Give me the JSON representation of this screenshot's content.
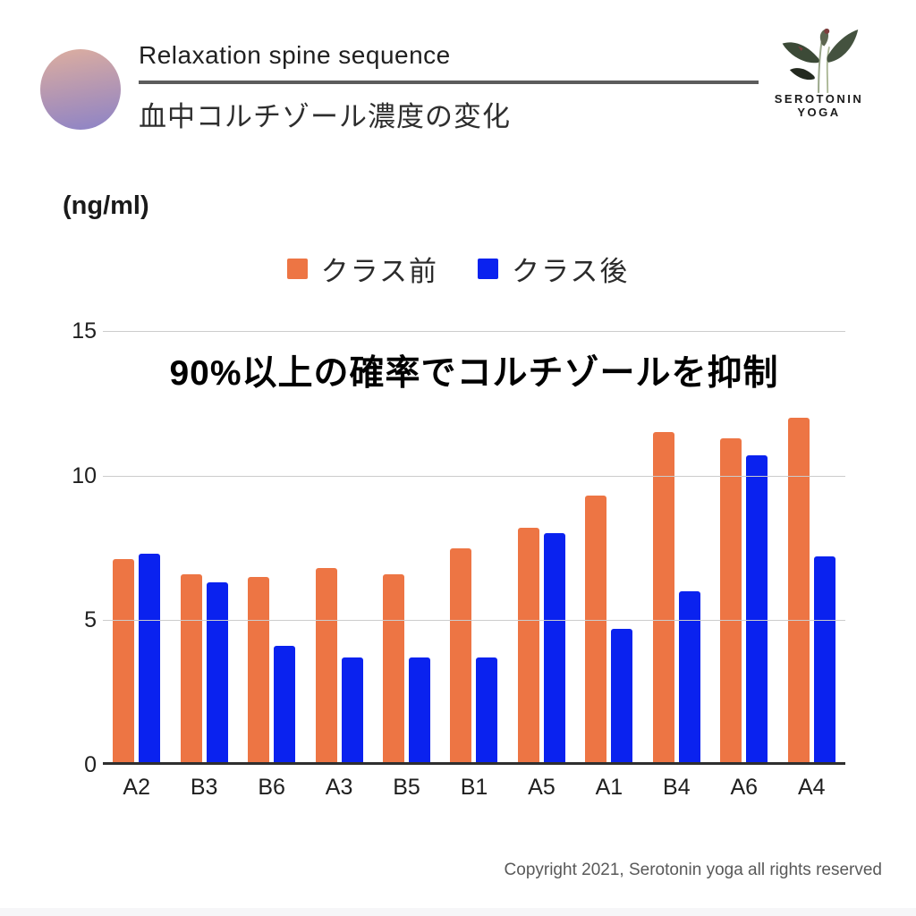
{
  "header": {
    "title": "Relaxation spine sequence",
    "subtitle": "血中コルチゾール濃度の変化",
    "brand_line1": "SEROTONIN",
    "brand_line2": "YOGA"
  },
  "unit_label": "(ng/ml)",
  "annotation": "90%以上の確率でコルチゾールを抑制",
  "footer": {
    "copyright": "Copyright 2021, Serotonin yoga all rights reserved"
  },
  "colors": {
    "before": "#ED7544",
    "after": "#0A22EF",
    "grid": "#CCCCCC",
    "axis": "#2F2F2F"
  },
  "chart_data": {
    "type": "bar",
    "categories": [
      "A2",
      "B3",
      "B6",
      "A3",
      "B5",
      "B1",
      "A5",
      "A1",
      "B4",
      "A6",
      "A4"
    ],
    "series": [
      {
        "name": "クラス前",
        "color": "#ED7544",
        "values": [
          7.1,
          6.6,
          6.5,
          6.8,
          6.6,
          7.5,
          8.2,
          9.3,
          11.5,
          11.3,
          12.0
        ]
      },
      {
        "name": "クラス後",
        "color": "#0A22EF",
        "values": [
          7.3,
          6.3,
          4.1,
          3.7,
          3.7,
          3.7,
          8.0,
          4.7,
          6.0,
          10.7,
          7.2
        ]
      }
    ],
    "title": "血中コルチゾール濃度の変化",
    "xlabel": "",
    "ylabel": "(ng/ml)",
    "yticks": [
      0,
      5,
      10,
      15
    ],
    "ylim": [
      0,
      15
    ],
    "grid": true,
    "legend_position": "top"
  }
}
